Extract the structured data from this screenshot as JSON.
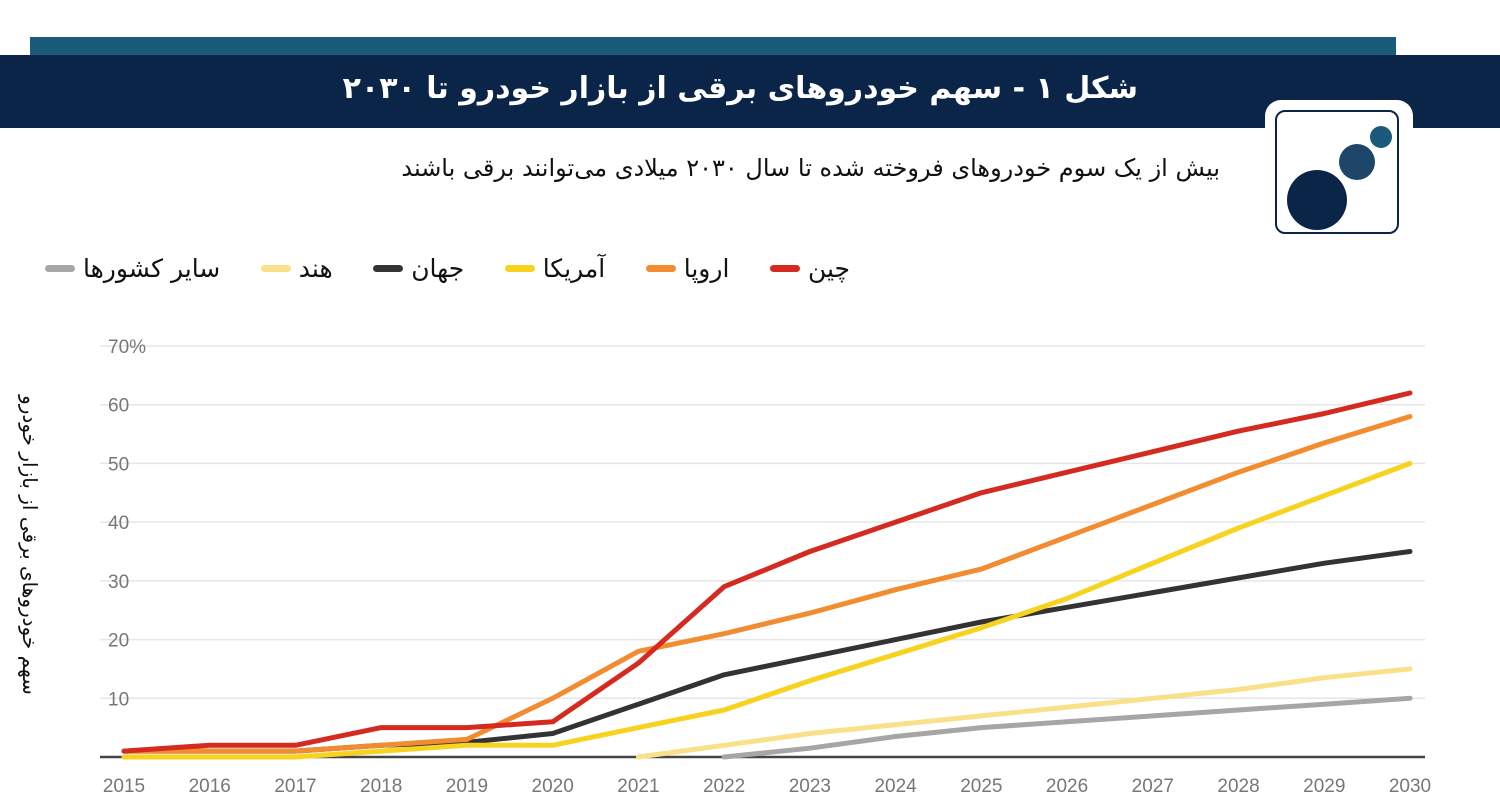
{
  "header": {
    "title": "شکل ۱ - سهم خودروهای برقی از بازار خودرو تا ۲۰۳۰",
    "subtitle": "بیش از یک سوم خودروهای فروخته شده تا سال ۲۰۳۰ میلادی می‌توانند برقی باشند"
  },
  "logo": {
    "icon": "three-dots-logo-icon"
  },
  "colors": {
    "title_band": "#0b2548",
    "top_bar": "#1c5a7c",
    "china": "#d42a1f",
    "europe": "#f28c30",
    "usa": "#f7d320",
    "world": "#333333",
    "india": "#fbe08a",
    "other": "#a6a6a6"
  },
  "chart_data": {
    "type": "line",
    "ylabel": "سهم خودروهای برقی از بازار خودرو",
    "xlabel": "",
    "x": [
      2015,
      2016,
      2017,
      2018,
      2019,
      2020,
      2021,
      2022,
      2023,
      2024,
      2025,
      2026,
      2027,
      2028,
      2029,
      2030
    ],
    "ylim": [
      0,
      70
    ],
    "yticks": [
      "70%",
      "60",
      "50",
      "40",
      "30",
      "20",
      "10"
    ],
    "ytick_values": [
      70,
      60,
      50,
      40,
      30,
      20,
      10
    ],
    "grid": true,
    "legend_position": "top-left",
    "series": [
      {
        "name": "چین",
        "color": "#d42a1f",
        "values": [
          1,
          2,
          2,
          5,
          5,
          6,
          16,
          29,
          35,
          40,
          45,
          48.5,
          52,
          55.5,
          58.5,
          62
        ]
      },
      {
        "name": "اروپا",
        "color": "#f28c30",
        "values": [
          1,
          1,
          1,
          2,
          3,
          10,
          18,
          21,
          24.5,
          28.5,
          32,
          37.5,
          43,
          48.5,
          53.5,
          58
        ]
      },
      {
        "name": "آمریکا",
        "color": "#f7d320",
        "values": [
          0,
          0,
          0,
          1,
          2,
          2,
          5,
          8,
          13,
          17.5,
          22,
          27,
          33,
          39,
          44.5,
          50
        ]
      },
      {
        "name": "جهان",
        "color": "#333333",
        "values": [
          1,
          1,
          1,
          2,
          2.5,
          4,
          9,
          14,
          17,
          20,
          23,
          25.5,
          28,
          30.5,
          33,
          35
        ]
      },
      {
        "name": "هند",
        "color": "#fbe08a",
        "values": [
          null,
          null,
          null,
          null,
          null,
          null,
          0,
          2,
          4,
          5.5,
          7,
          8.5,
          10,
          11.5,
          13.5,
          15
        ]
      },
      {
        "name": "سایر کشورها",
        "color": "#a6a6a6",
        "values": [
          null,
          null,
          null,
          null,
          null,
          null,
          null,
          0,
          1.5,
          3.5,
          5,
          6,
          7,
          8,
          9,
          10
        ]
      }
    ]
  }
}
